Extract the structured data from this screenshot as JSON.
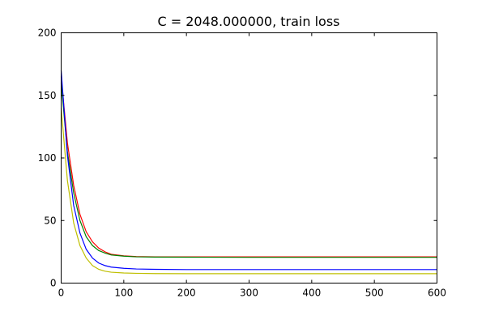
{
  "chart_data": {
    "type": "line",
    "title": "C = 2048.000000, train loss",
    "xlabel": "",
    "ylabel": "",
    "xlim": [
      0,
      600
    ],
    "ylim": [
      0,
      200
    ],
    "xticks": [
      0,
      100,
      200,
      300,
      400,
      500,
      600
    ],
    "yticks": [
      0,
      50,
      100,
      150,
      200
    ],
    "grid": false,
    "legend": "none",
    "series": [
      {
        "color": "#ff0000",
        "x": [
          0,
          10,
          20,
          30,
          40,
          50,
          60,
          70,
          80,
          100,
          120,
          150,
          200,
          300,
          400,
          500,
          600
        ],
        "values": [
          165,
          112,
          78,
          55,
          41,
          33,
          28,
          25,
          23,
          21.8,
          21.2,
          21,
          21,
          21,
          21,
          21,
          21
        ]
      },
      {
        "color": "#008000",
        "x": [
          0,
          10,
          20,
          30,
          40,
          50,
          60,
          70,
          80,
          100,
          120,
          150,
          200,
          300,
          400,
          500,
          600
        ],
        "values": [
          160,
          105,
          72,
          50,
          37,
          30,
          26,
          24,
          22.5,
          21.5,
          21,
          20.8,
          20.7,
          20.6,
          20.6,
          20.6,
          20.6
        ]
      },
      {
        "color": "#0000ff",
        "x": [
          0,
          10,
          20,
          30,
          40,
          50,
          60,
          70,
          80,
          100,
          120,
          150,
          200,
          300,
          400,
          500,
          600
        ],
        "values": [
          170,
          102,
          62,
          40,
          27,
          20,
          16,
          14,
          12.8,
          11.8,
          11.3,
          11,
          10.8,
          10.8,
          10.8,
          10.8,
          10.8
        ]
      },
      {
        "color": "#bfbf00",
        "x": [
          0,
          10,
          20,
          30,
          40,
          50,
          60,
          70,
          80,
          100,
          120,
          150,
          200,
          300,
          400,
          500,
          600
        ],
        "values": [
          140,
          82,
          48,
          30,
          20,
          14,
          11,
          9.5,
          8.7,
          8.1,
          7.8,
          7.6,
          7.5,
          7.5,
          7.5,
          7.5,
          7.5
        ]
      }
    ]
  }
}
